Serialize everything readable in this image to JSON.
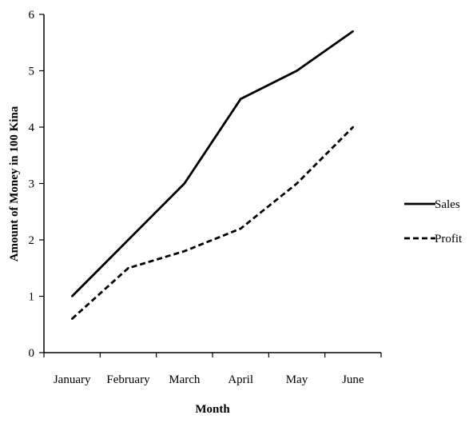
{
  "chart_data": {
    "type": "line",
    "title": "",
    "xlabel": "Month",
    "ylabel": "Amount of Money in 100 Kina",
    "categories": [
      "January",
      "February",
      "March",
      "April",
      "May",
      "June"
    ],
    "ylim": [
      0,
      6
    ],
    "yticks": [
      "0",
      "1",
      "2",
      "3",
      "4",
      "5",
      "6"
    ],
    "grid": false,
    "legend_position": "right",
    "series": [
      {
        "name": "Sales",
        "values": [
          1.0,
          2.0,
          3.0,
          4.5,
          5.0,
          5.7
        ],
        "color": "#000000",
        "line_style": "solid"
      },
      {
        "name": "Profit",
        "values": [
          0.6,
          1.5,
          1.8,
          2.2,
          3.0,
          4.0
        ],
        "color": "#000000",
        "line_style": "dashed"
      }
    ]
  }
}
